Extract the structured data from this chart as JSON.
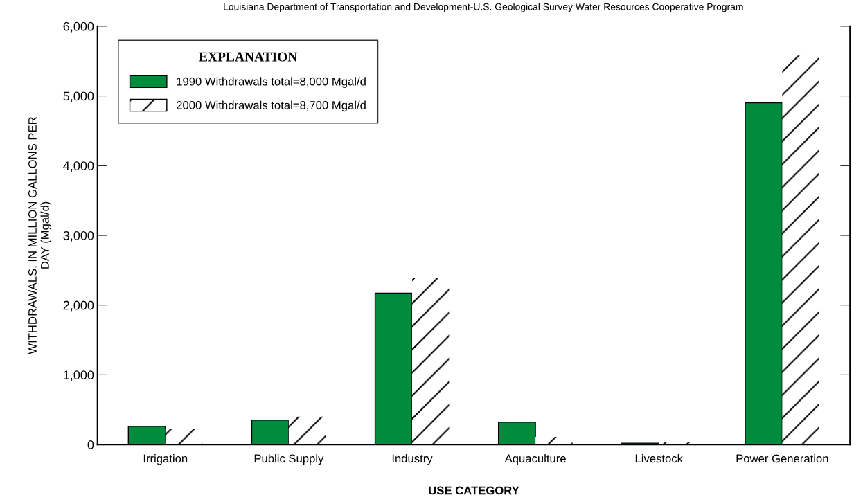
{
  "chart_data": {
    "type": "bar",
    "title": "Louisiana Department of Transportation and Development-U.S. Geological Survey Water Resources Cooperative Program",
    "xlabel": "USE CATEGORY",
    "ylabel": "WITHDRAWALS, IN MILLION GALLONS PER\nDAY (Mgal/d)",
    "legend_title": "EXPLANATION",
    "categories": [
      "Irrigation",
      "Public Supply",
      "Industry",
      "Aquaculture",
      "Livestock",
      "Power Generation"
    ],
    "series": [
      {
        "name": "1990 Withdrawals total=8,000 Mgal/d",
        "color": "#008c3c",
        "values": [
          260,
          350,
          2170,
          320,
          20,
          4900
        ]
      },
      {
        "name": "2000 Withdrawals total=8,700 Mgal/d",
        "color": "#ffffff",
        "values": [
          230,
          400,
          2390,
          110,
          30,
          5580
        ]
      }
    ],
    "ylim": [
      0,
      6000
    ],
    "yticks": [
      0,
      {
        "value": 1000,
        "label": "1,000"
      },
      {
        "value": 2000,
        "label": "2,000"
      },
      {
        "value": 3000,
        "label": "3,000"
      },
      {
        "value": 4000,
        "label": "4,000"
      },
      {
        "value": 5000,
        "label": "5,000"
      },
      {
        "value": 6000,
        "label": "6,000"
      }
    ],
    "grid": false,
    "legend": "top left"
  }
}
